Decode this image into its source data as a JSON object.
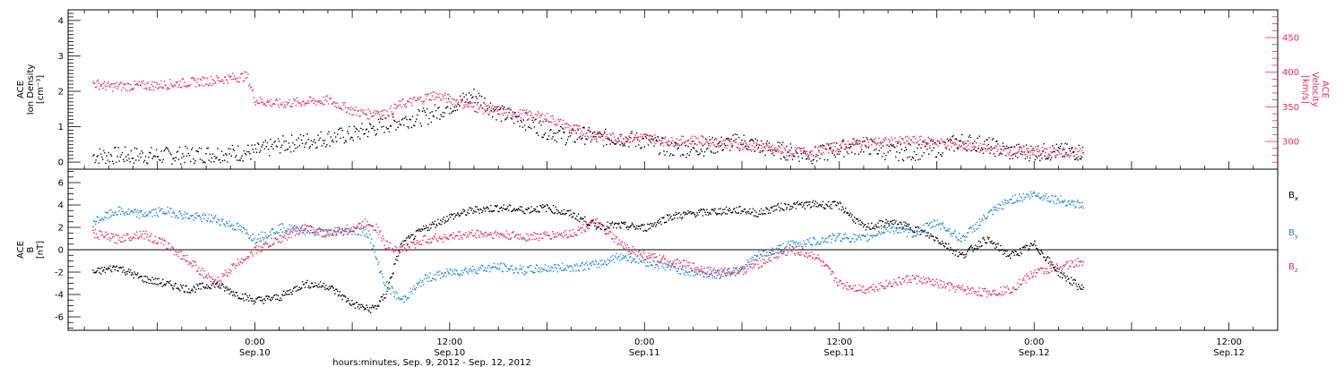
{
  "chart_data": [
    {
      "type": "scatter",
      "panel": "top",
      "ylabel_left": [
        "ACE",
        "Ion Density",
        "[cm⁻³]"
      ],
      "ylabel_right": [
        "ACE",
        "Velocity",
        "[km/s]"
      ],
      "ylim_left": [
        -0.2,
        4.3
      ],
      "yticks_left": [
        0,
        1,
        2,
        3,
        4
      ],
      "ylim_right": [
        260,
        490
      ],
      "yticks_right": [
        300,
        350,
        400,
        450
      ],
      "grid": false,
      "colors": {
        "density": "#000000",
        "velocity": "#e8295a"
      },
      "series": [
        {
          "key": "density",
          "axis": "left",
          "x": [
            -20,
            -10,
            0,
            3,
            6,
            9,
            12,
            15,
            18,
            21,
            24,
            27,
            30,
            33,
            36,
            39,
            40,
            42,
            45,
            48,
            51,
            54,
            57,
            60,
            63,
            66,
            69,
            72,
            75,
            78,
            81,
            84,
            87,
            90,
            93,
            96,
            99,
            102
          ],
          "values": [
            0.2,
            0.2,
            0.3,
            0.5,
            0.6,
            0.7,
            0.8,
            1.0,
            1.2,
            1.3,
            1.6,
            1.9,
            1.4,
            1.2,
            0.9,
            0.7,
            0.8,
            0.7,
            0.7,
            0.6,
            0.4,
            0.4,
            0.5,
            0.6,
            0.4,
            0.3,
            0.2,
            0.4,
            0.5,
            0.3,
            0.3,
            0.4,
            0.6,
            0.5,
            0.3,
            0.3,
            0.3,
            0.3
          ]
        },
        {
          "key": "velocity",
          "axis": "right",
          "x": [
            -20,
            -18,
            -12,
            -6,
            -1,
            0,
            3,
            6,
            9,
            12,
            14,
            15,
            16,
            18,
            20,
            22,
            24,
            27,
            30,
            33,
            36,
            39,
            42,
            45,
            48,
            51,
            54,
            57,
            60,
            63,
            66,
            69,
            72,
            75,
            78,
            81,
            84,
            87,
            90,
            93,
            96,
            99,
            102
          ],
          "values": [
            385,
            380,
            382,
            388,
            395,
            360,
            355,
            358,
            360,
            345,
            340,
            345,
            340,
            355,
            360,
            368,
            362,
            350,
            345,
            340,
            335,
            320,
            310,
            305,
            307,
            300,
            303,
            300,
            295,
            290,
            285,
            287,
            295,
            300,
            300,
            302,
            300,
            295,
            290,
            287,
            287,
            285,
            285
          ]
        }
      ]
    },
    {
      "type": "scatter",
      "panel": "bottom",
      "ylabel": [
        "ACE",
        "B",
        "[nT]"
      ],
      "ylim": [
        -7.2,
        7.2
      ],
      "yticks": [
        -6,
        -4,
        -2,
        0,
        2,
        4,
        6
      ],
      "zero_line": true,
      "grid": false,
      "colors": {
        "bx": "#000000",
        "by": "#1a84d8",
        "bz": "#e8295a"
      },
      "series": [
        {
          "key": "bx",
          "name": "Bx",
          "x": [
            -20,
            -17,
            -14,
            -11,
            -8,
            -5,
            -2,
            0,
            3,
            6,
            9,
            12,
            14,
            15,
            16,
            18,
            21,
            24,
            27,
            30,
            33,
            36,
            39,
            42,
            45,
            48,
            51,
            54,
            57,
            60,
            62,
            64,
            66,
            69,
            72,
            75,
            78,
            81,
            84,
            87,
            90,
            93,
            96,
            99,
            102
          ],
          "values": [
            -2.0,
            -1.5,
            -2.5,
            -3.0,
            -3.5,
            -3.0,
            -4.0,
            -4.5,
            -4.2,
            -3.0,
            -3.2,
            -4.8,
            -5.3,
            -5.0,
            -4.0,
            0.5,
            2.0,
            3.0,
            3.6,
            3.8,
            3.6,
            3.8,
            3.2,
            2.2,
            2.2,
            2.0,
            3.0,
            3.3,
            3.5,
            3.6,
            3.3,
            3.8,
            4.0,
            4.1,
            4.0,
            2.0,
            2.5,
            2.0,
            1.0,
            -0.5,
            1.0,
            -0.5,
            0.5,
            -2.0,
            -3.5
          ]
        },
        {
          "key": "by",
          "name": "By",
          "x": [
            -20,
            -17,
            -14,
            -11,
            -8,
            -5,
            -2,
            0,
            3,
            6,
            9,
            12,
            14,
            15,
            16,
            18,
            21,
            24,
            27,
            30,
            33,
            36,
            39,
            42,
            45,
            48,
            51,
            54,
            57,
            60,
            62,
            64,
            66,
            69,
            72,
            75,
            78,
            81,
            84,
            87,
            90,
            93,
            96,
            99,
            102
          ],
          "values": [
            2.5,
            3.5,
            3.2,
            3.5,
            3.0,
            2.8,
            2.0,
            1.0,
            2.0,
            1.8,
            1.5,
            1.8,
            1.5,
            -1.0,
            -3.0,
            -4.5,
            -2.5,
            -2.0,
            -1.7,
            -1.5,
            -1.8,
            -1.6,
            -1.5,
            -1.3,
            -0.5,
            -1.0,
            -1.5,
            -2.0,
            -2.2,
            -1.5,
            -0.5,
            0.0,
            0.5,
            0.8,
            1.2,
            1.0,
            2.0,
            1.5,
            2.5,
            1.0,
            3.0,
            4.5,
            5.0,
            4.5,
            4.0
          ]
        },
        {
          "key": "bz",
          "name": "Bz",
          "x": [
            -20,
            -17,
            -14,
            -11,
            -8,
            -5,
            -2,
            0,
            3,
            6,
            9,
            12,
            14,
            15,
            16,
            18,
            21,
            24,
            27,
            30,
            33,
            36,
            39,
            42,
            45,
            48,
            51,
            54,
            57,
            60,
            62,
            64,
            66,
            69,
            72,
            75,
            78,
            81,
            84,
            87,
            90,
            93,
            96,
            99,
            102
          ],
          "values": [
            1.5,
            1.0,
            1.5,
            0.5,
            -1.0,
            -3.0,
            -1.0,
            0.0,
            1.0,
            2.0,
            1.5,
            2.0,
            2.5,
            2.0,
            0.5,
            0.0,
            1.0,
            1.2,
            1.5,
            1.4,
            1.2,
            1.3,
            1.5,
            2.5,
            0.5,
            -0.5,
            -1.0,
            -1.5,
            -2.0,
            -1.8,
            -1.2,
            -0.5,
            0.0,
            -0.5,
            -3.0,
            -3.5,
            -3.0,
            -2.5,
            -3.0,
            -3.5,
            -3.8,
            -3.5,
            -2.0,
            -1.5,
            -1.0
          ]
        }
      ],
      "legend": [
        {
          "key": "bx",
          "base": "B",
          "sub": "x"
        },
        {
          "key": "by",
          "base": "B",
          "sub": "y"
        },
        {
          "key": "bz",
          "base": "B",
          "sub": "z"
        }
      ]
    }
  ],
  "x_axis": {
    "range_hours": [
      -23,
      126
    ],
    "ticks": [
      {
        "x": 0,
        "time": "0:00",
        "date": "Sep.10"
      },
      {
        "x": 24,
        "time": "12:00",
        "date": "Sep.10"
      },
      {
        "x": 48,
        "time": "0:00",
        "date": "Sep.11"
      },
      {
        "x": 72,
        "time": "12:00",
        "date": "Sep.11"
      },
      {
        "x": 96,
        "time": "0:00",
        "date": "Sep.12"
      },
      {
        "x": 120,
        "time": "12:00",
        "date": "Sep.12"
      }
    ],
    "xlabel": "hours:minutes, Sep.  9, 2012 - Sep. 12, 2012"
  }
}
